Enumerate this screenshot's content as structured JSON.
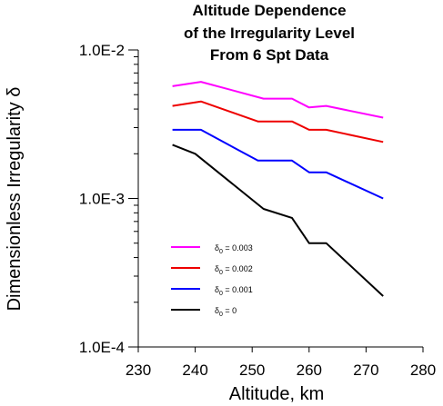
{
  "chart_data": {
    "type": "line",
    "title_lines": [
      "Altitude Dependence",
      "of the Irregularity Level",
      "From 6 Spt Data"
    ],
    "xlabel": "Altitude, km",
    "ylabel": "Dimensionless Irregularity δ",
    "x_scale": "linear",
    "y_scale": "log",
    "xlim": [
      230,
      280
    ],
    "ylim": [
      0.0001,
      0.01
    ],
    "x_ticks": [
      230,
      240,
      250,
      260,
      270,
      280
    ],
    "x_tick_labels": [
      "230",
      "240",
      "250",
      "260",
      "270",
      "280"
    ],
    "y_ticks": [
      0.0001,
      0.001,
      0.01
    ],
    "y_tick_labels": [
      "1.0E-4",
      "1.0E-3",
      "1.0E-2"
    ],
    "grid": false,
    "legend_position": "bottom-left",
    "series": [
      {
        "name": "δ0 = 0.003",
        "legend_base": "δ",
        "legend_sub": "0",
        "legend_rest": " = 0.003",
        "color": "#ff00ff",
        "x": [
          236,
          241,
          252,
          257,
          260,
          263,
          273
        ],
        "y": [
          0.0057,
          0.0061,
          0.0047,
          0.0047,
          0.0041,
          0.0042,
          0.0035
        ]
      },
      {
        "name": "δ0 = 0.002",
        "legend_base": "δ",
        "legend_sub": "0",
        "legend_rest": " = 0.002",
        "color": "#ee0000",
        "x": [
          236,
          241,
          251,
          257,
          260,
          263,
          273
        ],
        "y": [
          0.0042,
          0.0045,
          0.0033,
          0.0033,
          0.0029,
          0.0029,
          0.0024
        ]
      },
      {
        "name": "δ0 = 0.001",
        "legend_base": "δ",
        "legend_sub": "0",
        "legend_rest": " = 0.001",
        "color": "#0000ff",
        "x": [
          236,
          241,
          251,
          257,
          260,
          263,
          273
        ],
        "y": [
          0.0029,
          0.0029,
          0.0018,
          0.0018,
          0.0015,
          0.0015,
          0.001
        ]
      },
      {
        "name": "δ0 = 0",
        "legend_base": "δ",
        "legend_sub": "0",
        "legend_rest": " = 0",
        "color": "#000000",
        "x": [
          236,
          240,
          252,
          257,
          260,
          263,
          273
        ],
        "y": [
          0.0023,
          0.002,
          0.00085,
          0.00074,
          0.0005,
          0.0005,
          0.00022
        ]
      }
    ]
  }
}
